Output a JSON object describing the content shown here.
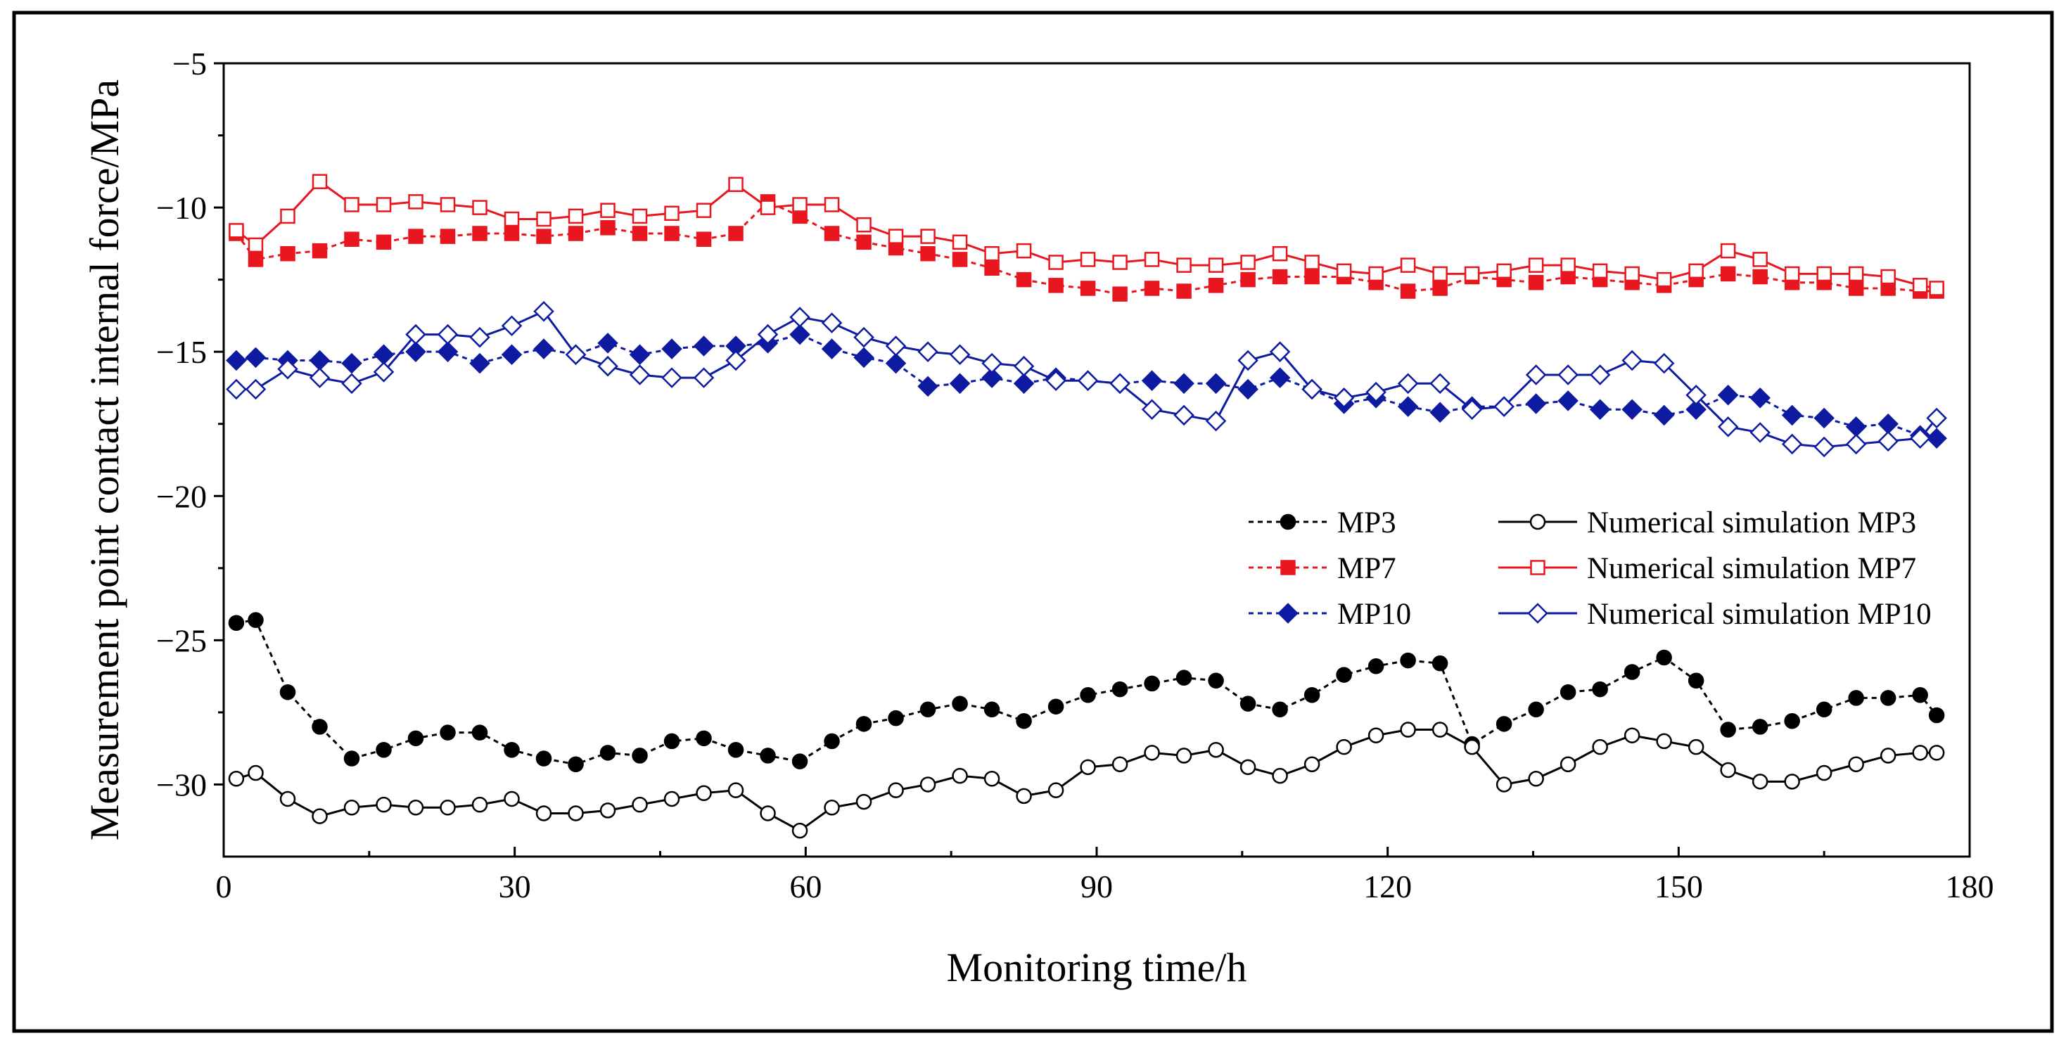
{
  "chart_data": {
    "type": "line",
    "xlabel": "Monitoring time/h",
    "ylabel": "Measurement point contact internal force/MPa",
    "xlim": [
      0,
      180
    ],
    "ylim": [
      -32.5,
      -5
    ],
    "xticks": [
      0,
      30,
      60,
      90,
      120,
      150,
      180
    ],
    "yticks": [
      -5,
      -10,
      -15,
      -20,
      -25,
      -30
    ],
    "xtick_labels": [
      "0",
      "30",
      "60",
      "90",
      "120",
      "150",
      "180"
    ],
    "ytick_labels": [
      "−5",
      "−10",
      "−15",
      "−20",
      "−25",
      "−30"
    ],
    "grid": false,
    "legend_position": "right-middle",
    "x": [
      1.3,
      3.3,
      6.6,
      9.9,
      13.2,
      16.5,
      19.8,
      23.1,
      26.4,
      29.7,
      33.0,
      36.3,
      39.6,
      42.9,
      46.2,
      49.5,
      52.8,
      56.1,
      59.4,
      62.7,
      66.0,
      69.3,
      72.6,
      75.9,
      79.2,
      82.5,
      85.8,
      89.1,
      92.4,
      95.7,
      99.0,
      102.3,
      105.6,
      108.9,
      112.2,
      115.5,
      118.8,
      122.1,
      125.4,
      128.7,
      132.0,
      135.3,
      138.6,
      141.9,
      145.2,
      148.5,
      151.8,
      155.1,
      158.4,
      161.7,
      165.0,
      168.3,
      171.6,
      174.9,
      176.6
    ],
    "series": [
      {
        "name": "MP3",
        "color": "#000000",
        "dashed": true,
        "marker": "circle",
        "filled": true,
        "values": [
          -24.4,
          -24.3,
          -26.8,
          -28.0,
          -29.1,
          -28.8,
          -28.4,
          -28.2,
          -28.2,
          -28.8,
          -29.1,
          -29.3,
          -28.9,
          -29.0,
          -28.5,
          -28.4,
          -28.8,
          -29.0,
          -29.2,
          -28.5,
          -27.9,
          -27.7,
          -27.4,
          -27.2,
          -27.4,
          -27.8,
          -27.3,
          -26.9,
          -26.7,
          -26.5,
          -26.3,
          -26.4,
          -27.2,
          -27.4,
          -26.9,
          -26.2,
          -25.9,
          -25.7,
          -25.8,
          -28.6,
          -27.9,
          -27.4,
          -26.8,
          -26.7,
          -26.1,
          -25.6,
          -26.4,
          -28.1,
          -28.0,
          -27.8,
          -27.4,
          -27.0,
          -27.0,
          -26.9,
          -27.6
        ]
      },
      {
        "name": "Numerical simulation MP3",
        "color": "#000000",
        "dashed": false,
        "marker": "circle",
        "filled": false,
        "values": [
          -29.8,
          -29.6,
          -30.5,
          -31.1,
          -30.8,
          -30.7,
          -30.8,
          -30.8,
          -30.7,
          -30.5,
          -31.0,
          -31.0,
          -30.9,
          -30.7,
          -30.5,
          -30.3,
          -30.2,
          -31.0,
          -31.6,
          -30.8,
          -30.6,
          -30.2,
          -30.0,
          -29.7,
          -29.8,
          -30.4,
          -30.2,
          -29.4,
          -29.3,
          -28.9,
          -29.0,
          -28.8,
          -29.4,
          -29.7,
          -29.3,
          -28.7,
          -28.3,
          -28.1,
          -28.1,
          -28.7,
          -30.0,
          -29.8,
          -29.3,
          -28.7,
          -28.3,
          -28.5,
          -28.7,
          -29.5,
          -29.9,
          -29.9,
          -29.6,
          -29.3,
          -29.0,
          -28.9,
          -28.9
        ]
      },
      {
        "name": "MP7",
        "color": "#e8161e",
        "dashed": true,
        "marker": "square",
        "filled": true,
        "values": [
          -10.9,
          -11.8,
          -11.6,
          -11.5,
          -11.1,
          -11.2,
          -11.0,
          -11.0,
          -10.9,
          -10.9,
          -11.0,
          -10.9,
          -10.7,
          -10.9,
          -10.9,
          -11.1,
          -10.9,
          -9.8,
          -10.3,
          -10.9,
          -11.2,
          -11.4,
          -11.6,
          -11.8,
          -12.1,
          -12.5,
          -12.7,
          -12.8,
          -13.0,
          -12.8,
          -12.9,
          -12.7,
          -12.5,
          -12.4,
          -12.4,
          -12.4,
          -12.6,
          -12.9,
          -12.8,
          -12.4,
          -12.5,
          -12.6,
          -12.4,
          -12.5,
          -12.6,
          -12.7,
          -12.5,
          -12.3,
          -12.4,
          -12.6,
          -12.6,
          -12.8,
          -12.8,
          -12.9,
          -12.9
        ]
      },
      {
        "name": "Numerical simulation MP7",
        "color": "#e8161e",
        "dashed": false,
        "marker": "square",
        "filled": false,
        "values": [
          -10.8,
          -11.3,
          -10.3,
          -9.1,
          -9.9,
          -9.9,
          -9.8,
          -9.9,
          -10.0,
          -10.4,
          -10.4,
          -10.3,
          -10.1,
          -10.3,
          -10.2,
          -10.1,
          -9.2,
          -10.0,
          -9.9,
          -9.9,
          -10.6,
          -11.0,
          -11.0,
          -11.2,
          -11.6,
          -11.5,
          -11.9,
          -11.8,
          -11.9,
          -11.8,
          -12.0,
          -12.0,
          -11.9,
          -11.6,
          -11.9,
          -12.2,
          -12.3,
          -12.0,
          -12.3,
          -12.3,
          -12.2,
          -12.0,
          -12.0,
          -12.2,
          -12.3,
          -12.5,
          -12.2,
          -11.5,
          -11.8,
          -12.3,
          -12.3,
          -12.3,
          -12.4,
          -12.7,
          -12.8
        ]
      },
      {
        "name": "MP10",
        "color": "#0e1aa0",
        "dashed": true,
        "marker": "diamond",
        "filled": true,
        "values": [
          -15.3,
          -15.2,
          -15.3,
          -15.3,
          -15.4,
          -15.1,
          -15.0,
          -15.0,
          -15.4,
          -15.1,
          -14.9,
          -15.1,
          -14.7,
          -15.1,
          -14.9,
          -14.8,
          -14.8,
          -14.7,
          -14.4,
          -14.9,
          -15.2,
          -15.4,
          -16.2,
          -16.1,
          -15.9,
          -16.1,
          -15.9,
          -16.0,
          -16.1,
          -16.0,
          -16.1,
          -16.1,
          -16.3,
          -15.9,
          -16.3,
          -16.8,
          -16.6,
          -16.9,
          -17.1,
          -16.9,
          -16.9,
          -16.8,
          -16.7,
          -17.0,
          -17.0,
          -17.2,
          -17.0,
          -16.5,
          -16.6,
          -17.2,
          -17.3,
          -17.6,
          -17.5,
          -17.9,
          -18.0
        ]
      },
      {
        "name": "Numerical simulation MP10",
        "color": "#0e1aa0",
        "dashed": false,
        "marker": "diamond",
        "filled": false,
        "values": [
          -16.3,
          -16.3,
          -15.6,
          -15.9,
          -16.1,
          -15.7,
          -14.4,
          -14.4,
          -14.5,
          -14.1,
          -13.6,
          -15.1,
          -15.5,
          -15.8,
          -15.9,
          -15.9,
          -15.3,
          -14.4,
          -13.8,
          -14.0,
          -14.5,
          -14.8,
          -15.0,
          -15.1,
          -15.4,
          -15.5,
          -16.0,
          -16.0,
          -16.1,
          -17.0,
          -17.2,
          -17.4,
          -15.3,
          -15.0,
          -16.3,
          -16.6,
          -16.4,
          -16.1,
          -16.1,
          -17.0,
          -16.9,
          -15.8,
          -15.8,
          -15.8,
          -15.3,
          -15.4,
          -16.5,
          -17.6,
          -17.8,
          -18.2,
          -18.3,
          -18.2,
          -18.1,
          -18.0,
          -17.3
        ]
      }
    ]
  }
}
